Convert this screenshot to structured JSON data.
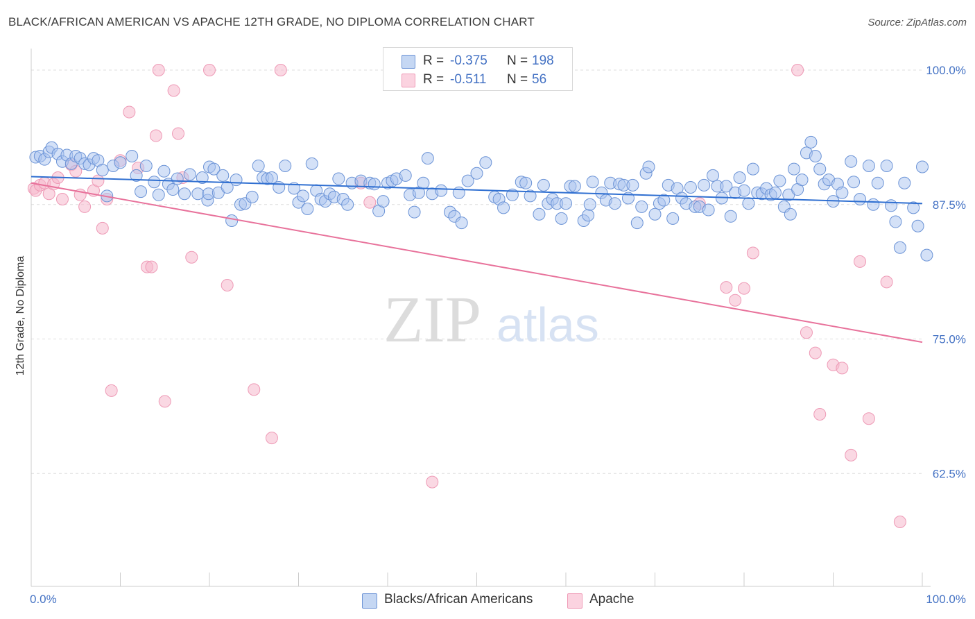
{
  "title": "BLACK/AFRICAN AMERICAN VS APACHE 12TH GRADE, NO DIPLOMA CORRELATION CHART",
  "source": "Source: ZipAtlas.com",
  "watermark": {
    "zip": "ZIP",
    "atlas": "atlas"
  },
  "colors": {
    "blue": "#4472c4",
    "blue_fill": "#a9c4ef",
    "blue_line": "#2f6fd1",
    "pink_fill": "#f6b8cc",
    "pink_line": "#e8729b"
  },
  "legend": {
    "rows": [
      {
        "r_label": "R =",
        "r_value": "-0.375",
        "n_label": "N =",
        "n_value": "198"
      },
      {
        "r_label": "R =",
        "r_value": "-0.511",
        "n_label": "N =",
        "n_value": "56"
      }
    ]
  },
  "bottom_legend": [
    "Blacks/African Americans",
    "Apache"
  ],
  "chart_data": {
    "type": "scatter",
    "ylabel": "12th Grade, No Diploma",
    "xlim": [
      0,
      100
    ],
    "ylim": [
      52,
      102
    ],
    "x_tick_labels": [
      "0.0%",
      "100.0%"
    ],
    "y_ticks": [
      100,
      87.5,
      75,
      62.5
    ],
    "y_tick_labels": [
      "100.0%",
      "87.5%",
      "75.0%",
      "62.5%"
    ],
    "grid": "horizontal dashed",
    "series": [
      {
        "name": "Blacks/African Americans",
        "color": "#a9c4ef",
        "trend": {
          "x": [
            0,
            100
          ],
          "y": [
            90.1,
            87.6
          ]
        },
        "points": [
          [
            0.5,
            91.9
          ],
          [
            1,
            92
          ],
          [
            1.5,
            91.7
          ],
          [
            2,
            92.4
          ],
          [
            2.3,
            92.8
          ],
          [
            3,
            92.2
          ],
          [
            3.5,
            91.5
          ],
          [
            4,
            92.1
          ],
          [
            4.5,
            91.3
          ],
          [
            5,
            92
          ],
          [
            5.5,
            91.8
          ],
          [
            6,
            91.3
          ],
          [
            6.5,
            91.2
          ],
          [
            7,
            91.8
          ],
          [
            7.5,
            91.6
          ],
          [
            8,
            90.7
          ],
          [
            8.5,
            88.3
          ],
          [
            9.2,
            91.1
          ],
          [
            10,
            91.4
          ],
          [
            11.3,
            92
          ],
          [
            11.8,
            90.2
          ],
          [
            12.3,
            88.7
          ],
          [
            12.9,
            91.1
          ],
          [
            13.8,
            89.6
          ],
          [
            14.3,
            88.4
          ],
          [
            14.9,
            90.6
          ],
          [
            15.4,
            89.4
          ],
          [
            15.9,
            88.9
          ],
          [
            16.4,
            89.9
          ],
          [
            17.2,
            88.5
          ],
          [
            17.8,
            90.3
          ],
          [
            18.7,
            88.5
          ],
          [
            19.2,
            90
          ],
          [
            19.8,
            87.9
          ],
          [
            19.9,
            88.5
          ],
          [
            20,
            91
          ],
          [
            20.5,
            90.8
          ],
          [
            21,
            88.6
          ],
          [
            21.5,
            90.2
          ],
          [
            22,
            89.1
          ],
          [
            22.5,
            86
          ],
          [
            23,
            89.8
          ],
          [
            23.5,
            87.5
          ],
          [
            24,
            87.6
          ],
          [
            24.8,
            88.2
          ],
          [
            25.5,
            91.1
          ],
          [
            26,
            90
          ],
          [
            26.5,
            89.9
          ],
          [
            27,
            90
          ],
          [
            27.8,
            89.1
          ],
          [
            28.5,
            91.1
          ],
          [
            29.5,
            89
          ],
          [
            30,
            87.7
          ],
          [
            30.5,
            88.3
          ],
          [
            31,
            87.1
          ],
          [
            31.5,
            91.3
          ],
          [
            32,
            88.8
          ],
          [
            32.5,
            88
          ],
          [
            33,
            87.8
          ],
          [
            33.5,
            88.5
          ],
          [
            34,
            88.2
          ],
          [
            34.5,
            89.9
          ],
          [
            35,
            88
          ],
          [
            35.5,
            87.5
          ],
          [
            36,
            89.5
          ],
          [
            37,
            89.7
          ],
          [
            38,
            89.5
          ],
          [
            38.5,
            89.4
          ],
          [
            39,
            86.9
          ],
          [
            39.5,
            87.8
          ],
          [
            40,
            89.5
          ],
          [
            40.5,
            89.7
          ],
          [
            41,
            89.9
          ],
          [
            42,
            90.2
          ],
          [
            42.5,
            88.4
          ],
          [
            43,
            86.8
          ],
          [
            43.5,
            88.6
          ],
          [
            44,
            89.5
          ],
          [
            44.5,
            91.8
          ],
          [
            45,
            88.5
          ],
          [
            46,
            88.8
          ],
          [
            47,
            86.8
          ],
          [
            47.5,
            86.4
          ],
          [
            48,
            88.6
          ],
          [
            48.3,
            85.8
          ],
          [
            49,
            89.7
          ],
          [
            50,
            90.4
          ],
          [
            51,
            91.4
          ],
          [
            52,
            88.2
          ],
          [
            52.5,
            88
          ],
          [
            53,
            87.2
          ],
          [
            54,
            88.4
          ],
          [
            55,
            89.6
          ],
          [
            55.5,
            89.5
          ],
          [
            56,
            88.3
          ],
          [
            57,
            86.6
          ],
          [
            57.5,
            89.3
          ],
          [
            58,
            87.6
          ],
          [
            58.5,
            88
          ],
          [
            59,
            87.6
          ],
          [
            59.5,
            86.2
          ],
          [
            60,
            87.6
          ],
          [
            60.5,
            89.2
          ],
          [
            61,
            89.2
          ],
          [
            62,
            86
          ],
          [
            62.5,
            86.5
          ],
          [
            62.7,
            87.5
          ],
          [
            63,
            89.6
          ],
          [
            64,
            88.6
          ],
          [
            64.5,
            87.9
          ],
          [
            65,
            89.5
          ],
          [
            65.5,
            87.6
          ],
          [
            66,
            89.4
          ],
          [
            66.5,
            89.3
          ],
          [
            67,
            88.1
          ],
          [
            67.5,
            89.3
          ],
          [
            68,
            85.8
          ],
          [
            68.5,
            87.3
          ],
          [
            69,
            90.4
          ],
          [
            69.3,
            91
          ],
          [
            70,
            86.6
          ],
          [
            70.5,
            87.6
          ],
          [
            71,
            87.9
          ],
          [
            71.5,
            89.3
          ],
          [
            72,
            86.2
          ],
          [
            72.5,
            89
          ],
          [
            73,
            88.1
          ],
          [
            73.5,
            87.6
          ],
          [
            74,
            89.1
          ],
          [
            74.5,
            87.3
          ],
          [
            75,
            87.3
          ],
          [
            75.5,
            89.3
          ],
          [
            76,
            87
          ],
          [
            76.5,
            90.2
          ],
          [
            77,
            89.2
          ],
          [
            77.5,
            88.1
          ],
          [
            78,
            89.2
          ],
          [
            78.5,
            86.4
          ],
          [
            79,
            88.6
          ],
          [
            79.5,
            90
          ],
          [
            80,
            88.8
          ],
          [
            80.5,
            87.6
          ],
          [
            81,
            90.8
          ],
          [
            81.5,
            88.6
          ],
          [
            82,
            88.5
          ],
          [
            82.5,
            89
          ],
          [
            83,
            88.4
          ],
          [
            83.5,
            88.6
          ],
          [
            84,
            89.7
          ],
          [
            84.5,
            87.3
          ],
          [
            85,
            88.4
          ],
          [
            85.2,
            86.6
          ],
          [
            85.6,
            90.8
          ],
          [
            86,
            88.9
          ],
          [
            86.5,
            89.8
          ],
          [
            87,
            92.3
          ],
          [
            87.5,
            93.3
          ],
          [
            88,
            92
          ],
          [
            88.5,
            90.8
          ],
          [
            89,
            89.4
          ],
          [
            89.5,
            89.8
          ],
          [
            90,
            87.8
          ],
          [
            90.5,
            89.4
          ],
          [
            91,
            88.6
          ],
          [
            92,
            91.5
          ],
          [
            92.3,
            89.6
          ],
          [
            93,
            88
          ],
          [
            94,
            91.1
          ],
          [
            94.5,
            87.5
          ],
          [
            95,
            89.5
          ],
          [
            96,
            91.1
          ],
          [
            96.5,
            87.4
          ],
          [
            97,
            85.9
          ],
          [
            97.5,
            83.5
          ],
          [
            98,
            89.5
          ],
          [
            99,
            87.2
          ],
          [
            99.5,
            85.5
          ],
          [
            100,
            91
          ],
          [
            100.5,
            82.8
          ]
        ]
      },
      {
        "name": "Apache",
        "color": "#f6b8cc",
        "trend": {
          "x": [
            0,
            100
          ],
          "y": [
            89.5,
            74.7
          ]
        },
        "points": [
          [
            0.3,
            89
          ],
          [
            0.5,
            88.8
          ],
          [
            1,
            89.3
          ],
          [
            1.5,
            89.5
          ],
          [
            2,
            88.5
          ],
          [
            2.5,
            89.4
          ],
          [
            3,
            90
          ],
          [
            3.5,
            88
          ],
          [
            4.5,
            91.2
          ],
          [
            5,
            90.6
          ],
          [
            5.5,
            88.4
          ],
          [
            6,
            87.3
          ],
          [
            7,
            88.8
          ],
          [
            7.5,
            89.7
          ],
          [
            8,
            85.3
          ],
          [
            8.5,
            88
          ],
          [
            9,
            70.2
          ],
          [
            10,
            91.6
          ],
          [
            11,
            96.1
          ],
          [
            12,
            90.9
          ],
          [
            13,
            81.7
          ],
          [
            13.5,
            81.7
          ],
          [
            14,
            93.9
          ],
          [
            14.3,
            100
          ],
          [
            15,
            69.2
          ],
          [
            16,
            98.1
          ],
          [
            16.5,
            94.1
          ],
          [
            17,
            90
          ],
          [
            18,
            82.6
          ],
          [
            20,
            100
          ],
          [
            22,
            80
          ],
          [
            25,
            70.3
          ],
          [
            27,
            65.8
          ],
          [
            28,
            100
          ],
          [
            37,
            89.5
          ],
          [
            38,
            87.7
          ],
          [
            45,
            61.7
          ],
          [
            75,
            87.6
          ],
          [
            78,
            79.8
          ],
          [
            79,
            78.6
          ],
          [
            80,
            79.7
          ],
          [
            81,
            83
          ],
          [
            86,
            100
          ],
          [
            87,
            75.6
          ],
          [
            88,
            73.7
          ],
          [
            88.5,
            68
          ],
          [
            90,
            72.6
          ],
          [
            91,
            72.3
          ],
          [
            92,
            64.2
          ],
          [
            93,
            82.2
          ],
          [
            94,
            67.6
          ],
          [
            96,
            80.3
          ],
          [
            97.5,
            58
          ]
        ]
      }
    ]
  }
}
